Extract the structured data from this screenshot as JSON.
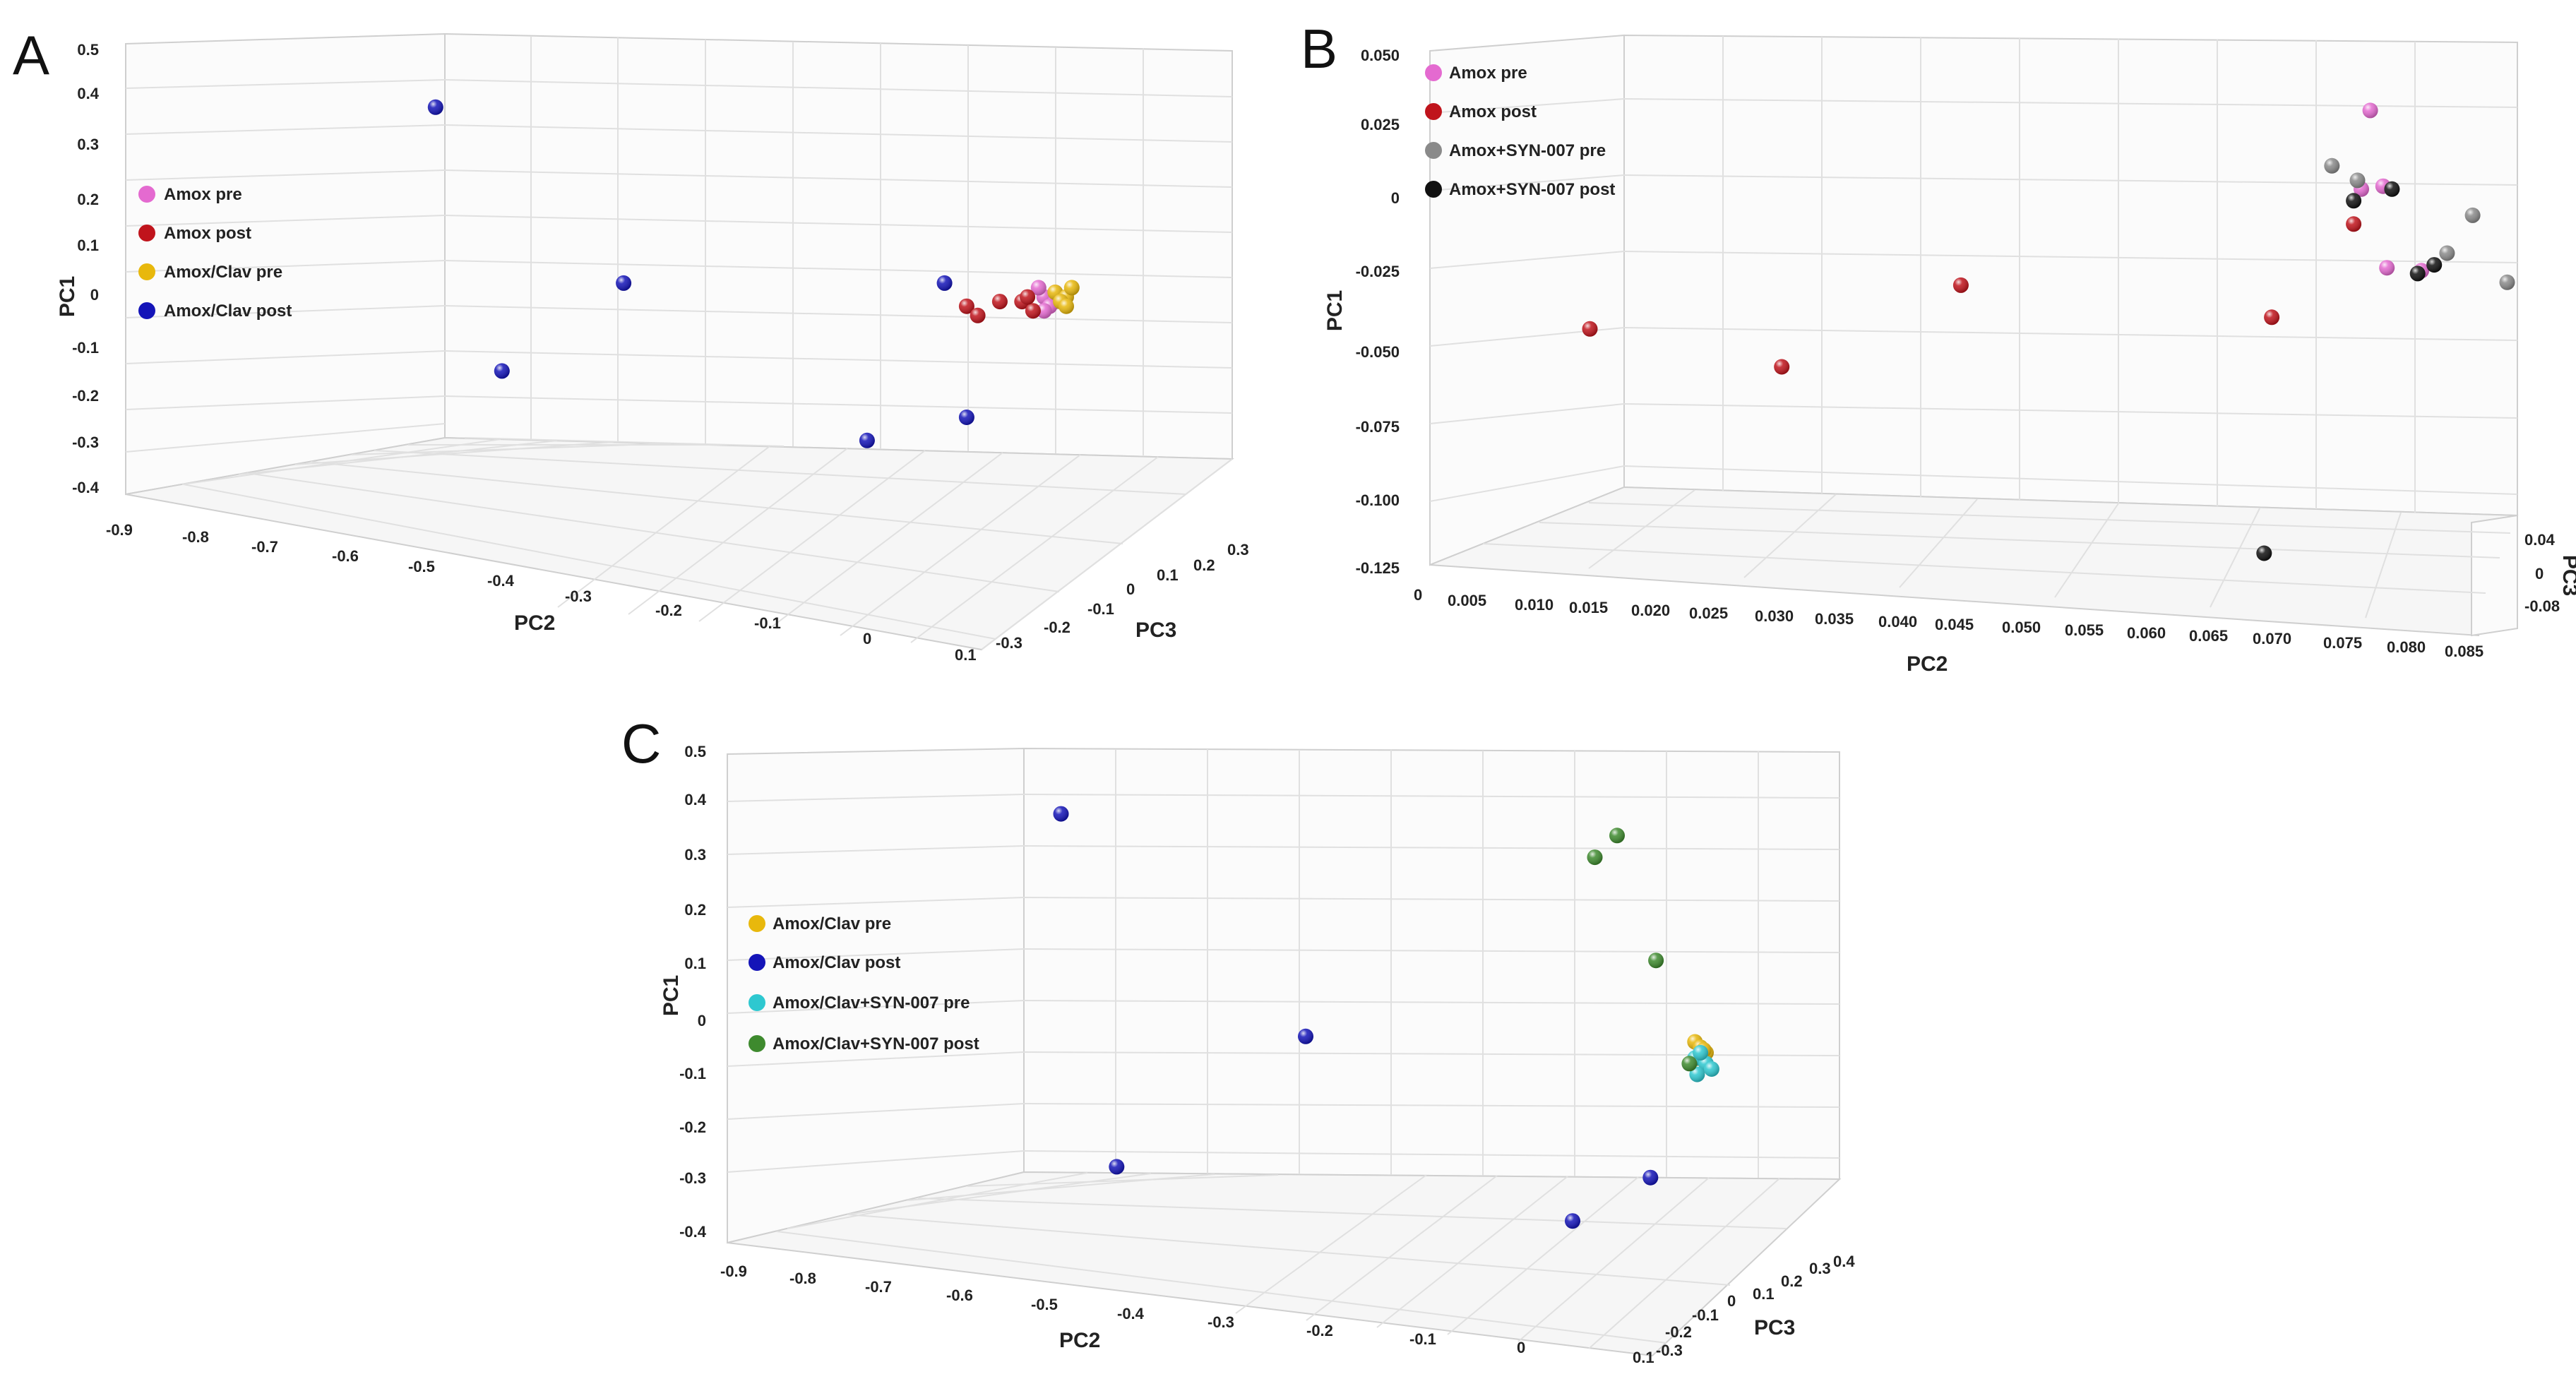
{
  "colors": {
    "amox_pre": "#e46ad0",
    "amox_post": "#c0141c",
    "amoxclav_pre": "#e8b80c",
    "amoxclav_post": "#1414b8",
    "syn_pre_grey": "#8a8a8a",
    "syn_post_black": "#111111",
    "cyan": "#2ec8d0",
    "green": "#3e8a2e"
  },
  "panels": {
    "A": {
      "letter": "A",
      "y_axis_title": "PC1",
      "x_axis_title": "PC2",
      "z_axis_title": "PC3",
      "y_ticks": [
        "0.5",
        "0.4",
        "0.3",
        "0.2",
        "0.1",
        "0",
        "-0.1",
        "-0.2",
        "-0.3",
        "-0.4"
      ],
      "x_ticks": [
        "-0.9",
        "-0.8",
        "-0.7",
        "-0.6",
        "-0.5",
        "-0.4",
        "-0.3",
        "-0.2",
        "-0.1",
        "0",
        "0.1"
      ],
      "z_ticks": [
        "-0.3",
        "-0.2",
        "-0.1",
        "0",
        "0.1",
        "0.2",
        "0.3"
      ],
      "legend": [
        "Amox pre",
        "Amox post",
        "Amox/Clav pre",
        "Amox/Clav post"
      ]
    },
    "B": {
      "letter": "B",
      "y_axis_title": "PC1",
      "x_axis_title": "PC2",
      "z_axis_title": "PC3",
      "y_ticks": [
        "0.050",
        "0.025",
        "0",
        "-0.025",
        "-0.050",
        "-0.075",
        "-0.100",
        "-0.125"
      ],
      "x_ticks": [
        "0",
        "0.005",
        "0.010",
        "0.015",
        "0.020",
        "0.025",
        "0.030",
        "0.035",
        "0.040",
        "0.045",
        "0.050",
        "0.055",
        "0.060",
        "0.065",
        "0.070",
        "0.075",
        "0.080",
        "0.085"
      ],
      "z_ticks": [
        "0.04",
        "0",
        "-0.08"
      ],
      "legend": [
        "Amox pre",
        "Amox post",
        "Amox+SYN-007 pre",
        "Amox+SYN-007 post"
      ]
    },
    "C": {
      "letter": "C",
      "y_axis_title": "PC1",
      "x_axis_title": "PC2",
      "z_axis_title": "PC3",
      "y_ticks": [
        "0.5",
        "0.4",
        "0.3",
        "0.2",
        "0.1",
        "0",
        "-0.1",
        "-0.2",
        "-0.3",
        "-0.4"
      ],
      "x_ticks": [
        "-0.9",
        "-0.8",
        "-0.7",
        "-0.6",
        "-0.5",
        "-0.4",
        "-0.3",
        "-0.2",
        "-0.1",
        "0",
        "0.1"
      ],
      "z_ticks": [
        "-0.3",
        "-0.2",
        "-0.1",
        "0",
        "0.1",
        "0.2",
        "0.3",
        "0.4"
      ],
      "legend": [
        "Amox/Clav pre",
        "Amox/Clav post",
        "Amox/Clav+SYN-007 pre",
        "Amox/Clav+SYN-007 post"
      ]
    }
  },
  "chart_data": [
    {
      "type": "scatter",
      "panel": "A",
      "projection": "3d",
      "xlabel": "PC2",
      "ylabel": "PC1",
      "zlabel": "PC3",
      "xlim": [
        -0.9,
        0.1
      ],
      "ylim": [
        -0.4,
        0.5
      ],
      "zlim": [
        -0.3,
        0.3
      ],
      "series": [
        {
          "name": "Amox pre",
          "color_key": "amox_pre",
          "x": [
            -0.07,
            -0.06,
            -0.075,
            -0.065,
            -0.07,
            -0.06
          ],
          "y": [
            -0.05,
            -0.06,
            -0.03,
            -0.07,
            -0.08,
            -0.04
          ]
        },
        {
          "name": "Amox post",
          "color_key": "amox_post",
          "x": [
            -0.14,
            -0.13,
            -0.11,
            -0.09,
            -0.08,
            -0.085
          ],
          "y": [
            -0.07,
            -0.09,
            -0.06,
            -0.06,
            -0.08,
            -0.05
          ]
        },
        {
          "name": "Amox/Clav pre",
          "color_key": "amoxclav_pre",
          "x": [
            -0.06,
            -0.05,
            -0.055,
            -0.045,
            -0.05
          ],
          "y": [
            -0.04,
            -0.05,
            -0.06,
            -0.03,
            -0.07
          ]
        },
        {
          "name": "Amox/Clav post",
          "color_key": "amoxclav_post",
          "x": [
            -0.62,
            -0.45,
            -0.56,
            -0.23,
            -0.14,
            -0.16
          ],
          "y": [
            0.36,
            -0.02,
            -0.21,
            -0.36,
            -0.31,
            -0.02
          ]
        }
      ]
    },
    {
      "type": "scatter",
      "panel": "B",
      "projection": "3d",
      "xlabel": "PC2",
      "ylabel": "PC1",
      "zlabel": "PC3",
      "xlim": [
        0,
        0.085
      ],
      "ylim": [
        -0.125,
        0.05
      ],
      "zlim": [
        -0.08,
        0.04
      ],
      "series": [
        {
          "name": "Amox pre",
          "color_key": "amox_pre",
          "x": [
            0.0735,
            0.0728,
            0.0745,
            0.0748,
            0.0775
          ],
          "y": [
            0.031,
            0.004,
            0.005,
            -0.023,
            -0.024
          ]
        },
        {
          "name": "Amox post",
          "color_key": "amox_post",
          "x": [
            0.0125,
            0.0275,
            0.0415,
            0.0658,
            0.0722
          ],
          "y": [
            -0.044,
            -0.057,
            -0.029,
            -0.04,
            -0.008
          ]
        },
        {
          "name": "Amox+SYN-007 pre",
          "color_key": "syn_pre_grey",
          "x": [
            0.0705,
            0.0725,
            0.0795,
            0.0815,
            0.0842
          ],
          "y": [
            0.012,
            0.007,
            -0.018,
            -0.005,
            -0.028
          ]
        },
        {
          "name": "Amox+SYN-007 post",
          "color_key": "syn_post_black",
          "x": [
            0.0722,
            0.0752,
            0.0772,
            0.0785,
            0.0652
          ],
          "y": [
            0.0,
            0.004,
            -0.025,
            -0.022,
            -0.121
          ]
        }
      ]
    },
    {
      "type": "scatter",
      "panel": "C",
      "projection": "3d",
      "xlabel": "PC2",
      "ylabel": "PC1",
      "zlabel": "PC3",
      "xlim": [
        -0.9,
        0.1
      ],
      "ylim": [
        -0.4,
        0.5
      ],
      "zlim": [
        -0.3,
        0.4
      ],
      "series": [
        {
          "name": "Amox/Clav pre",
          "color_key": "amoxclav_pre",
          "x": [
            -0.03,
            -0.025,
            -0.02,
            -0.028,
            -0.022
          ],
          "y": [
            -0.03,
            -0.04,
            -0.05,
            -0.06,
            -0.045
          ]
        },
        {
          "name": "Amox/Clav post",
          "color_key": "amoxclav_post",
          "x": [
            -0.6,
            -0.38,
            -0.55,
            -0.14,
            -0.07
          ],
          "y": [
            0.39,
            -0.02,
            -0.26,
            -0.36,
            -0.28
          ]
        },
        {
          "name": "Amox/Clav+SYN-007 pre",
          "color_key": "cyan",
          "x": [
            -0.03,
            -0.02,
            -0.025,
            -0.015,
            -0.028
          ],
          "y": [
            -0.06,
            -0.07,
            -0.05,
            -0.08,
            -0.09
          ]
        },
        {
          "name": "Amox/Clav+SYN-007 post",
          "color_key": "green",
          "x": [
            -0.12,
            -0.1,
            -0.065,
            -0.035
          ],
          "y": [
            0.31,
            0.35,
            0.12,
            -0.07
          ]
        }
      ]
    }
  ]
}
